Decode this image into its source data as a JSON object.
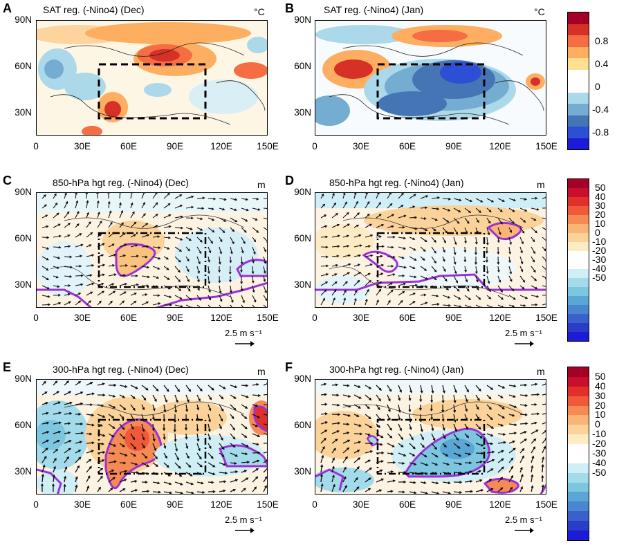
{
  "panels": [
    {
      "id": "A",
      "label": "A",
      "title": "SAT reg. (-Nino4) (Dec)",
      "unit": "°C",
      "ref_vector": null
    },
    {
      "id": "B",
      "label": "B",
      "title": "SAT reg. (-Nino4) (Jan)",
      "unit": "°C",
      "ref_vector": null
    },
    {
      "id": "C",
      "label": "C",
      "title": "850-hPa hgt reg. (-Nino4) (Dec)",
      "unit": "m",
      "ref_vector": "2.5 m s⁻¹"
    },
    {
      "id": "D",
      "label": "D",
      "title": "850-hPa hgt reg. (-Nino4) (Jan)",
      "unit": "m",
      "ref_vector": "2.5 m s⁻¹"
    },
    {
      "id": "E",
      "label": "E",
      "title": "300-hPa hgt reg. (-Nino4) (Dec)",
      "unit": "m",
      "ref_vector": "2.5 m s⁻¹"
    },
    {
      "id": "F",
      "label": "F",
      "title": "300-hPa hgt reg. (-Nino4) (Jan)",
      "unit": "m",
      "ref_vector": "2.5 m s⁻¹"
    }
  ],
  "axes": {
    "lat_ticks": [
      "90N",
      "60N",
      "30N"
    ],
    "lon_ticks": [
      "0",
      "30E",
      "60E",
      "90E",
      "120E",
      "150E"
    ]
  },
  "colorbars": {
    "sat": {
      "labels": [
        "0.8",
        "0.4",
        "0",
        "-0.4",
        "-0.8"
      ],
      "colors": [
        "#a50026",
        "#d73027",
        "#f46d43",
        "#fdae61",
        "#fee090",
        "#ffffff",
        "#ffffff",
        "#abd9e9",
        "#74add1",
        "#4575b4",
        "#2c4fd6",
        "#1c1cd8"
      ]
    },
    "hgt": {
      "labels": [
        "50",
        "40",
        "30",
        "20",
        "10",
        "0",
        "-10",
        "-20",
        "-30",
        "-40",
        "-50"
      ],
      "colors": [
        "#a50026",
        "#c8102e",
        "#e0302a",
        "#f05a3a",
        "#f68a55",
        "#f9b476",
        "#fbd39a",
        "#fdebc4",
        "#ffffff",
        "#ffffff",
        "#cfeef5",
        "#a4dbea",
        "#7cc6e0",
        "#5aa7d6",
        "#4a86d0",
        "#3a60cc",
        "#2a3dc8",
        "#1c1cd8"
      ]
    }
  }
}
